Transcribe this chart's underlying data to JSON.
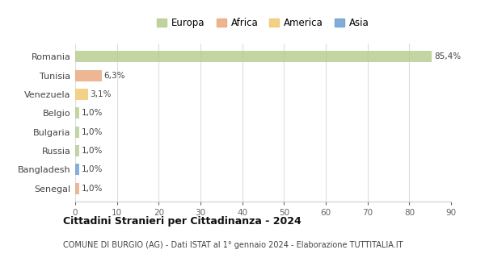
{
  "categories": [
    "Romania",
    "Tunisia",
    "Venezuela",
    "Belgio",
    "Bulgaria",
    "Russia",
    "Bangladesh",
    "Senegal"
  ],
  "values": [
    85.4,
    6.3,
    3.1,
    1.0,
    1.0,
    1.0,
    1.0,
    1.0
  ],
  "labels": [
    "85,4%",
    "6,3%",
    "3,1%",
    "1,0%",
    "1,0%",
    "1,0%",
    "1,0%",
    "1,0%"
  ],
  "bar_colors": [
    "#b5cc8e",
    "#e9a87c",
    "#f0c96e",
    "#b5cc8e",
    "#b5cc8e",
    "#b5cc8e",
    "#6b9fd4",
    "#e9a87c"
  ],
  "legend_items": [
    {
      "label": "Europa",
      "color": "#b5cc8e"
    },
    {
      "label": "Africa",
      "color": "#e9a87c"
    },
    {
      "label": "America",
      "color": "#f0c96e"
    },
    {
      "label": "Asia",
      "color": "#6b9fd4"
    }
  ],
  "xlim": [
    0,
    90
  ],
  "xticks": [
    0,
    10,
    20,
    30,
    40,
    50,
    60,
    70,
    80,
    90
  ],
  "title": "Cittadini Stranieri per Cittadinanza - 2024",
  "subtitle": "COMUNE DI BURGIO (AG) - Dati ISTAT al 1° gennaio 2024 - Elaborazione TUTTITALIA.IT",
  "background_color": "#ffffff",
  "plot_bg_color": "#ffffff",
  "grid_color": "#dddddd"
}
